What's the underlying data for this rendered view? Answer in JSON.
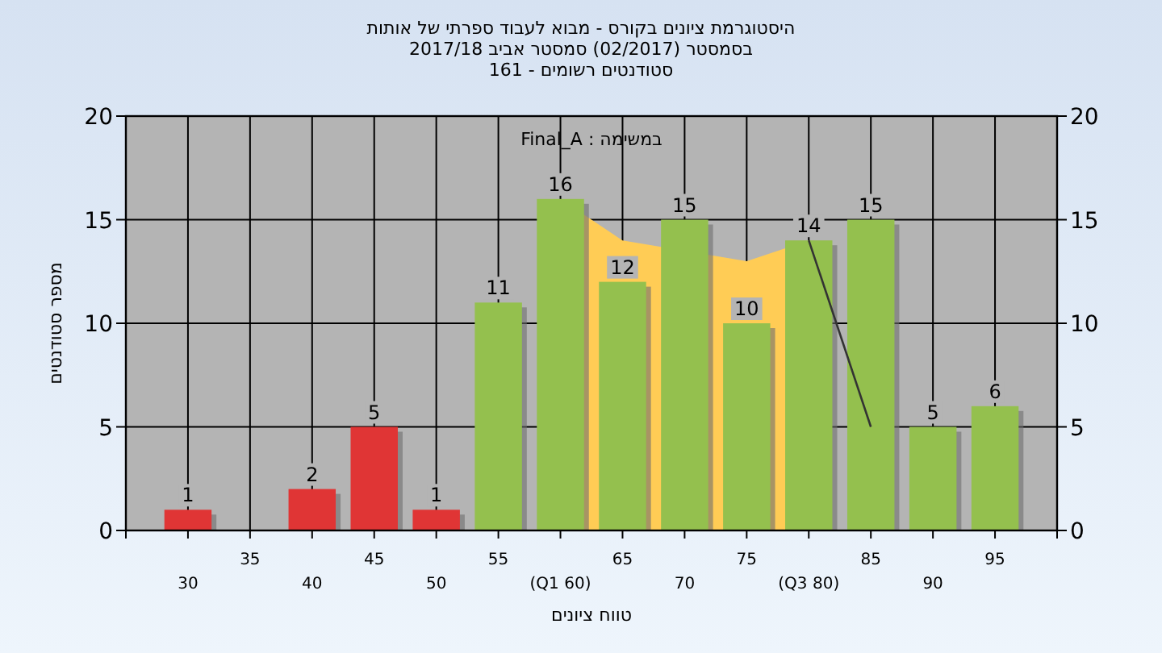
{
  "chart_data": {
    "type": "bar",
    "title": "היסטוגרמת ציונים בקורס - מבוא לעבוד ספרתי של אותות",
    "subtitle": "בסמסטר  (02/2017)  סמסטר אביב 2017/18\nסטודנטים רשומים - 161",
    "xlabel": "טווח ציונים",
    "ylabel": "מספר סטודנטים",
    "annotations": [
      "במשימה : Final_A"
    ],
    "categories": [
      "30",
      "35",
      "40",
      "45",
      "50",
      "55",
      "(Q1 60)",
      "65",
      "70",
      "75",
      "(Q3 80)",
      "85",
      "90",
      "95"
    ],
    "series": [
      {
        "type": "area",
        "color": "#ffcc55",
        "values": [
          null,
          null,
          null,
          null,
          null,
          null,
          16,
          14,
          null,
          13,
          14,
          null,
          null,
          null
        ]
      },
      {
        "type": "line",
        "color": "#333333",
        "values": [
          null,
          null,
          null,
          null,
          null,
          null,
          null,
          null,
          null,
          null,
          14,
          5,
          null,
          null
        ]
      },
      {
        "colors": [
          "#e03535",
          null,
          "#e03535",
          "#e03535",
          "#e03535",
          "#94c04e",
          "#94c04e",
          "#94c04e",
          "#94c04e",
          "#94c04e",
          "#94c04e",
          "#94c04e",
          "#94c04e",
          "#94c04e"
        ],
        "values": [
          1,
          null,
          2,
          5,
          1,
          11,
          16,
          12,
          15,
          10,
          14,
          15,
          5,
          6
        ],
        "value_labels": [
          "1",
          null,
          "2",
          "5",
          "1",
          "11",
          "16",
          "12",
          "15",
          "10",
          "14",
          "15",
          "5",
          "6"
        ]
      }
    ],
    "ylim": [
      0,
      20
    ],
    "yticks": [
      0,
      5,
      10,
      15,
      20
    ],
    "y2lim": [
      0,
      20
    ],
    "y2ticks": [
      0,
      5,
      10,
      15,
      20
    ],
    "grid": true
  }
}
